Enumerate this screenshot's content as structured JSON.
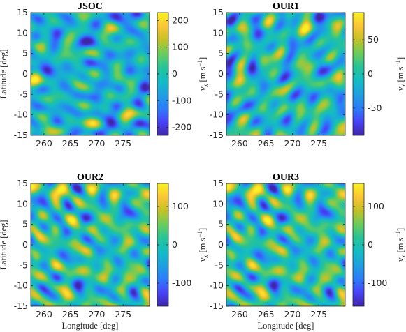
{
  "colors": {
    "colormap": [
      "#3e26a8",
      "#4743f8",
      "#2c7dfa",
      "#1ea0e0",
      "#13bcc5",
      "#27c397",
      "#6acd5b",
      "#c4c127",
      "#fbc535",
      "#f8f21f"
    ],
    "axis": "#262626"
  },
  "chart_data": [
    {
      "type": "heatmap",
      "title": "JSOC",
      "xlabel": "",
      "ylabel": "Latitude [deg]",
      "xlim": [
        257.5,
        280
      ],
      "ylim": [
        -15,
        15
      ],
      "x_ticks": [
        "260",
        "265",
        "270",
        "275"
      ],
      "y_ticks": [
        "15",
        "10",
        "5",
        "0",
        "-5",
        "-10",
        "-15"
      ],
      "colorbar": {
        "ticks": [
          "200",
          "100",
          "0",
          "-100",
          "-200"
        ],
        "clim": [
          -230,
          230
        ],
        "label": ""
      },
      "seed": 11
    },
    {
      "type": "heatmap",
      "title": "OUR1",
      "xlabel": "",
      "ylabel": "",
      "xlim": [
        257.5,
        280
      ],
      "ylim": [
        -15,
        15
      ],
      "x_ticks": [
        "260",
        "265",
        "270",
        "275"
      ],
      "y_ticks": [
        "15",
        "10",
        "5",
        "0",
        "-5",
        "-10",
        "-15"
      ],
      "colorbar": {
        "ticks": [
          "50",
          "0",
          "-50"
        ],
        "clim": [
          -90,
          90
        ],
        "label": "v_x [m s^-1]"
      },
      "seed": 23
    },
    {
      "type": "heatmap",
      "title": "OUR2",
      "xlabel": "Longitude [deg]",
      "ylabel": "Latitude [deg]",
      "xlim": [
        257.5,
        280
      ],
      "ylim": [
        -15,
        15
      ],
      "x_ticks": [
        "260",
        "265",
        "270",
        "275"
      ],
      "y_ticks": [
        "15",
        "10",
        "5",
        "0",
        "-5",
        "-10",
        "-15"
      ],
      "colorbar": {
        "ticks": [
          "100",
          "0",
          "-100"
        ],
        "clim": [
          -160,
          160
        ],
        "label": ""
      },
      "seed": 37
    },
    {
      "type": "heatmap",
      "title": "OUR3",
      "xlabel": "Longitude [deg]",
      "ylabel": "",
      "xlim": [
        257.5,
        280
      ],
      "ylim": [
        -15,
        15
      ],
      "x_ticks": [
        "260",
        "265",
        "270",
        "275"
      ],
      "y_ticks": [
        "15",
        "10",
        "5",
        "0",
        "-5",
        "-10",
        "-15"
      ],
      "colorbar": {
        "ticks": [
          "100",
          "0",
          "-100"
        ],
        "clim": [
          -160,
          160
        ],
        "label": "v_x [m s^-1]"
      },
      "seed": 37
    }
  ]
}
